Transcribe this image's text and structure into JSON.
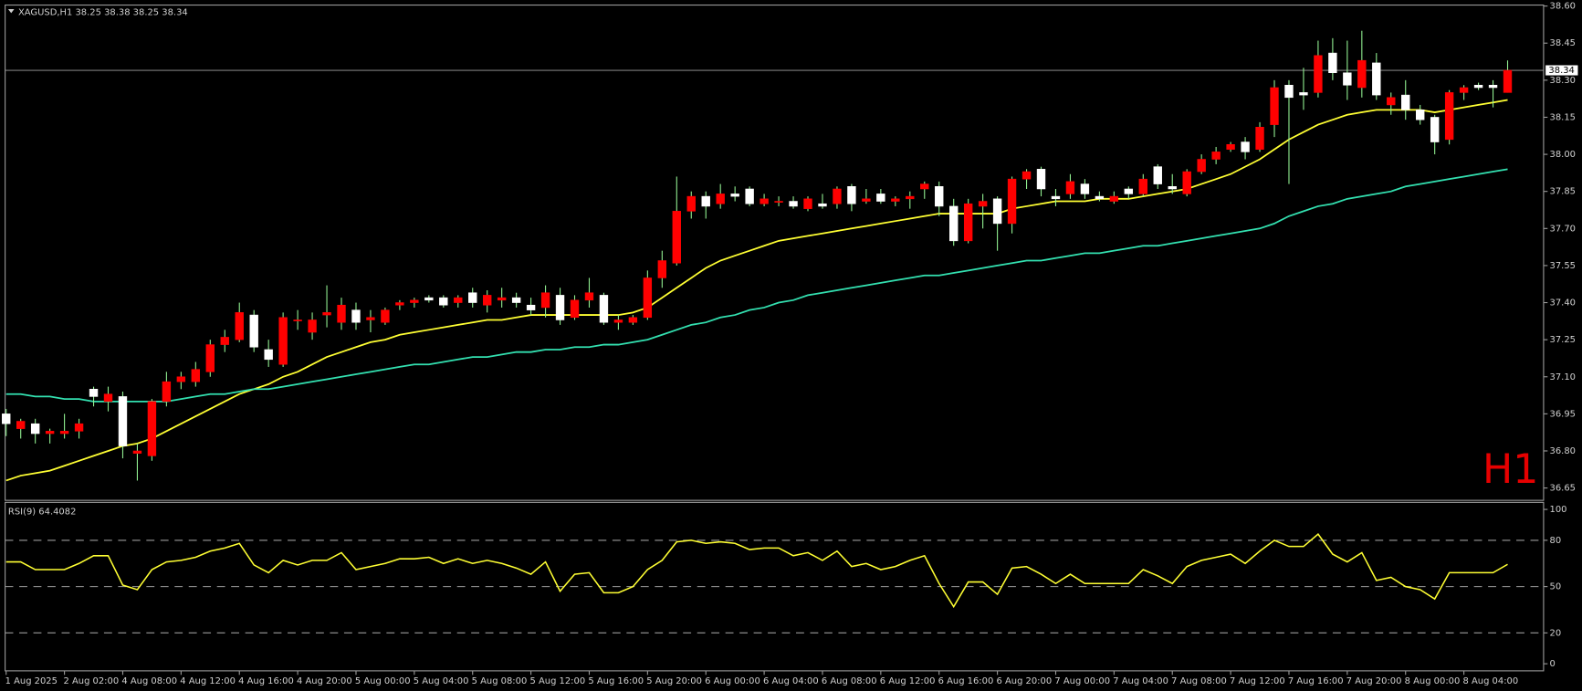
{
  "chart_data": [
    {
      "type": "candlestick",
      "title": "XAGUSD,H1  38.25 38.38 38.25 38.34",
      "annotation": "H1",
      "current_price": 38.34,
      "categories": [
        "1 Aug 2025",
        null,
        null,
        null,
        "2 Aug 02:00",
        null,
        null,
        null,
        "4 Aug 08:00",
        null,
        null,
        null,
        "4 Aug 12:00",
        null,
        null,
        null,
        "4 Aug 16:00",
        null,
        null,
        null,
        "4 Aug 20:00",
        null,
        null,
        null,
        "5 Aug 00:00",
        null,
        null,
        null,
        "5 Aug 04:00",
        null,
        null,
        null,
        "5 Aug 08:00",
        null,
        null,
        null,
        "5 Aug 12:00",
        null,
        null,
        null,
        "5 Aug 16:00",
        null,
        null,
        null,
        "5 Aug 20:00",
        null,
        null,
        null,
        "6 Aug 00:00",
        null,
        null,
        null,
        "6 Aug 04:00",
        null,
        null,
        null,
        "6 Aug 08:00",
        null,
        null,
        null,
        "6 Aug 12:00",
        null,
        null,
        null,
        "6 Aug 16:00",
        null,
        null,
        null,
        "6 Aug 20:00",
        null,
        null,
        null,
        "7 Aug 00:00",
        null,
        null,
        null,
        "7 Aug 04:00",
        null,
        null,
        null,
        "7 Aug 08:00",
        null,
        null,
        null,
        "7 Aug 12:00",
        null,
        null,
        null,
        "7 Aug 16:00",
        null,
        null,
        null,
        "7 Aug 20:00",
        null,
        null,
        null,
        "8 Aug 00:00",
        null,
        null,
        null,
        "8 Aug 04:00",
        null,
        null,
        null
      ],
      "open": [
        36.95,
        36.89,
        36.91,
        36.87,
        36.87,
        36.88,
        37.05,
        37.0,
        37.02,
        36.79,
        36.78,
        37.0,
        37.08,
        37.08,
        37.12,
        37.23,
        37.25,
        37.35,
        37.21,
        37.15,
        37.33,
        37.28,
        37.35,
        37.32,
        37.37,
        37.33,
        37.32,
        37.39,
        37.4,
        37.42,
        37.42,
        37.4,
        37.44,
        37.39,
        37.41,
        37.42,
        37.39,
        37.38,
        37.43,
        37.34,
        37.41,
        37.43,
        37.32,
        37.32,
        37.34,
        37.5,
        37.56,
        37.77,
        37.83,
        37.8,
        37.84,
        37.86,
        37.8,
        37.81,
        37.81,
        37.78,
        37.8,
        37.8,
        37.87,
        37.81,
        37.84,
        37.81,
        37.82,
        37.86,
        37.87,
        37.79,
        37.65,
        37.79,
        37.82,
        37.72,
        37.9,
        37.94,
        37.83,
        37.84,
        37.88,
        37.83,
        37.81,
        37.86,
        37.84,
        37.95,
        37.87,
        37.84,
        37.93,
        37.98,
        38.02,
        38.05,
        38.02,
        38.12,
        38.28,
        38.25,
        38.25,
        38.41,
        38.33,
        38.27,
        38.37,
        38.2,
        38.24,
        38.18,
        38.15,
        38.06,
        38.25,
        38.28,
        38.28,
        38.25
      ],
      "high": [
        36.97,
        36.93,
        36.93,
        36.89,
        36.95,
        36.93,
        37.06,
        37.06,
        37.04,
        36.83,
        37.01,
        37.12,
        37.12,
        37.16,
        37.25,
        37.29,
        37.4,
        37.37,
        37.25,
        37.36,
        37.37,
        37.36,
        37.47,
        37.42,
        37.4,
        37.37,
        37.38,
        37.41,
        37.42,
        37.43,
        37.43,
        37.43,
        37.46,
        37.45,
        37.46,
        37.44,
        37.42,
        37.47,
        37.46,
        37.43,
        37.5,
        37.44,
        37.35,
        37.35,
        37.53,
        37.61,
        37.91,
        37.85,
        37.85,
        37.88,
        37.87,
        37.87,
        37.84,
        37.83,
        37.83,
        37.83,
        37.84,
        37.87,
        37.88,
        37.86,
        37.86,
        37.83,
        37.85,
        37.89,
        37.89,
        37.82,
        37.82,
        37.84,
        37.83,
        37.91,
        37.94,
        37.95,
        37.86,
        37.92,
        37.9,
        37.85,
        37.85,
        37.87,
        37.92,
        37.96,
        37.92,
        37.94,
        38.0,
        38.03,
        38.05,
        38.07,
        38.13,
        38.3,
        38.3,
        38.35,
        38.46,
        38.47,
        38.46,
        38.5,
        38.41,
        38.25,
        38.3,
        38.2,
        38.16,
        38.26,
        38.28,
        38.29,
        38.3,
        38.38
      ],
      "low": [
        36.86,
        36.85,
        36.83,
        36.83,
        36.85,
        36.85,
        36.98,
        36.96,
        36.77,
        36.68,
        36.76,
        36.98,
        37.05,
        37.06,
        37.1,
        37.2,
        37.24,
        37.2,
        37.14,
        37.14,
        37.29,
        37.25,
        37.3,
        37.29,
        37.29,
        37.28,
        37.31,
        37.37,
        37.38,
        37.4,
        37.38,
        37.38,
        37.38,
        37.36,
        37.38,
        37.38,
        37.35,
        37.34,
        37.31,
        37.33,
        37.38,
        37.31,
        37.29,
        37.31,
        37.33,
        37.46,
        37.55,
        37.74,
        37.74,
        37.78,
        37.81,
        37.79,
        37.79,
        37.79,
        37.78,
        37.77,
        37.78,
        37.78,
        37.77,
        37.8,
        37.8,
        37.79,
        37.78,
        37.82,
        37.75,
        37.63,
        37.64,
        37.7,
        37.61,
        37.68,
        37.86,
        37.83,
        37.79,
        37.82,
        37.82,
        37.81,
        37.8,
        37.82,
        37.83,
        37.86,
        37.84,
        37.83,
        37.92,
        37.96,
        38.01,
        37.98,
        38.01,
        38.07,
        37.88,
        38.18,
        38.23,
        38.3,
        38.22,
        38.23,
        38.22,
        38.16,
        38.14,
        38.12,
        38.0,
        38.04,
        38.22,
        38.26,
        38.19,
        38.25
      ],
      "close": [
        36.91,
        36.92,
        36.87,
        36.88,
        36.88,
        36.91,
        37.02,
        37.03,
        36.82,
        36.8,
        37.0,
        37.08,
        37.1,
        37.13,
        37.23,
        37.26,
        37.36,
        37.22,
        37.17,
        37.34,
        37.33,
        37.33,
        37.36,
        37.39,
        37.32,
        37.34,
        37.37,
        37.4,
        37.41,
        37.41,
        37.39,
        37.42,
        37.4,
        37.43,
        37.42,
        37.4,
        37.37,
        37.44,
        37.33,
        37.41,
        37.44,
        37.32,
        37.33,
        37.34,
        37.5,
        37.57,
        37.77,
        37.83,
        37.79,
        37.84,
        37.83,
        37.8,
        37.82,
        37.81,
        37.79,
        37.82,
        37.79,
        37.86,
        37.8,
        37.82,
        37.81,
        37.82,
        37.83,
        37.88,
        37.79,
        37.65,
        37.8,
        37.81,
        37.72,
        37.9,
        37.93,
        37.86,
        37.82,
        37.89,
        37.84,
        37.82,
        37.83,
        37.84,
        37.9,
        37.88,
        37.86,
        37.93,
        37.98,
        38.01,
        38.04,
        38.01,
        38.11,
        38.27,
        38.23,
        38.24,
        38.4,
        38.33,
        38.28,
        38.38,
        38.24,
        38.23,
        38.18,
        38.14,
        38.05,
        38.25,
        38.27,
        38.27,
        38.27,
        38.34
      ],
      "series": [
        {
          "color": "#ffff33",
          "values": [
            36.68,
            36.7,
            36.71,
            36.72,
            36.74,
            36.76,
            36.78,
            36.8,
            36.82,
            36.83,
            36.85,
            36.88,
            36.91,
            36.94,
            36.97,
            37.0,
            37.03,
            37.05,
            37.07,
            37.1,
            37.12,
            37.15,
            37.18,
            37.2,
            37.22,
            37.24,
            37.25,
            37.27,
            37.28,
            37.29,
            37.3,
            37.31,
            37.32,
            37.33,
            37.33,
            37.34,
            37.35,
            37.35,
            37.35,
            37.35,
            37.35,
            37.35,
            37.35,
            37.36,
            37.38,
            37.42,
            37.46,
            37.5,
            37.54,
            37.57,
            37.59,
            37.61,
            37.63,
            37.65,
            37.66,
            37.67,
            37.68,
            37.69,
            37.7,
            37.71,
            37.72,
            37.73,
            37.74,
            37.75,
            37.76,
            37.76,
            37.76,
            37.76,
            37.76,
            37.78,
            37.79,
            37.8,
            37.81,
            37.81,
            37.81,
            37.82,
            37.82,
            37.82,
            37.83,
            37.84,
            37.85,
            37.86,
            37.88,
            37.9,
            37.92,
            37.95,
            37.98,
            38.02,
            38.06,
            38.09,
            38.12,
            38.14,
            38.16,
            38.17,
            38.18,
            38.18,
            38.18,
            38.18,
            38.17,
            38.18,
            38.19,
            38.2,
            38.21,
            38.22
          ]
        },
        {
          "color": "#33e0b0",
          "values": [
            37.03,
            37.03,
            37.02,
            37.02,
            37.01,
            37.01,
            37.0,
            37.0,
            37.0,
            37.0,
            37.0,
            37.0,
            37.01,
            37.02,
            37.03,
            37.03,
            37.04,
            37.05,
            37.05,
            37.06,
            37.07,
            37.08,
            37.09,
            37.1,
            37.11,
            37.12,
            37.13,
            37.14,
            37.15,
            37.15,
            37.16,
            37.17,
            37.18,
            37.18,
            37.19,
            37.2,
            37.2,
            37.21,
            37.21,
            37.22,
            37.22,
            37.23,
            37.23,
            37.24,
            37.25,
            37.27,
            37.29,
            37.31,
            37.32,
            37.34,
            37.35,
            37.37,
            37.38,
            37.4,
            37.41,
            37.43,
            37.44,
            37.45,
            37.46,
            37.47,
            37.48,
            37.49,
            37.5,
            37.51,
            37.51,
            37.52,
            37.53,
            37.54,
            37.55,
            37.56,
            37.57,
            37.57,
            37.58,
            37.59,
            37.6,
            37.6,
            37.61,
            37.62,
            37.63,
            37.63,
            37.64,
            37.65,
            37.66,
            37.67,
            37.68,
            37.69,
            37.7,
            37.72,
            37.75,
            37.77,
            37.79,
            37.8,
            37.82,
            37.83,
            37.84,
            37.85,
            37.87,
            37.88,
            37.89,
            37.9,
            37.91,
            37.92,
            37.93,
            37.94
          ]
        }
      ],
      "up_color": "#ff0000",
      "down_color": "#ffffff",
      "wick_color": "#90ee90",
      "ylim": [
        36.6,
        38.6
      ],
      "yticks": [
        36.65,
        {
          "value": 36.8,
          "label": "36.80"
        },
        36.95,
        {
          "value": 37.1,
          "label": "37.10"
        },
        37.25,
        {
          "value": 37.4,
          "label": "37.40"
        },
        37.55,
        {
          "value": 37.7,
          "label": "37.70"
        },
        37.85,
        {
          "value": 38,
          "label": "38.00"
        },
        38.15,
        {
          "value": 38.3,
          "label": "38.30"
        },
        38.45,
        {
          "value": 38.6,
          "label": "38.60"
        }
      ]
    },
    {
      "type": "line",
      "title": "RSI(9) 64.4082",
      "color": "#ffff33",
      "values": [
        66,
        66,
        61,
        61,
        61,
        65,
        70,
        70,
        51,
        48,
        61,
        66,
        67,
        69,
        73,
        75,
        78,
        64,
        59,
        67,
        64,
        67,
        67,
        72,
        61,
        63,
        65,
        68,
        68,
        69,
        65,
        68,
        65,
        67,
        65,
        62,
        58,
        66,
        47,
        58,
        59,
        46,
        46,
        50,
        61,
        67,
        79,
        80,
        78,
        79,
        78,
        74,
        75,
        75,
        70,
        72,
        67,
        73,
        63,
        65,
        61,
        63,
        67,
        70,
        52,
        37,
        53,
        53,
        45,
        62,
        63,
        58,
        52,
        58,
        52,
        52,
        52,
        52,
        61,
        57,
        52,
        63,
        67,
        69,
        71,
        65,
        73,
        80,
        76,
        76,
        84,
        71,
        66,
        72,
        54,
        56,
        50,
        48,
        42,
        59,
        59,
        59,
        59,
        64.4082
      ],
      "ylim": [
        0,
        100
      ],
      "yticks": [
        0,
        20,
        50,
        80,
        100
      ]
    }
  ]
}
